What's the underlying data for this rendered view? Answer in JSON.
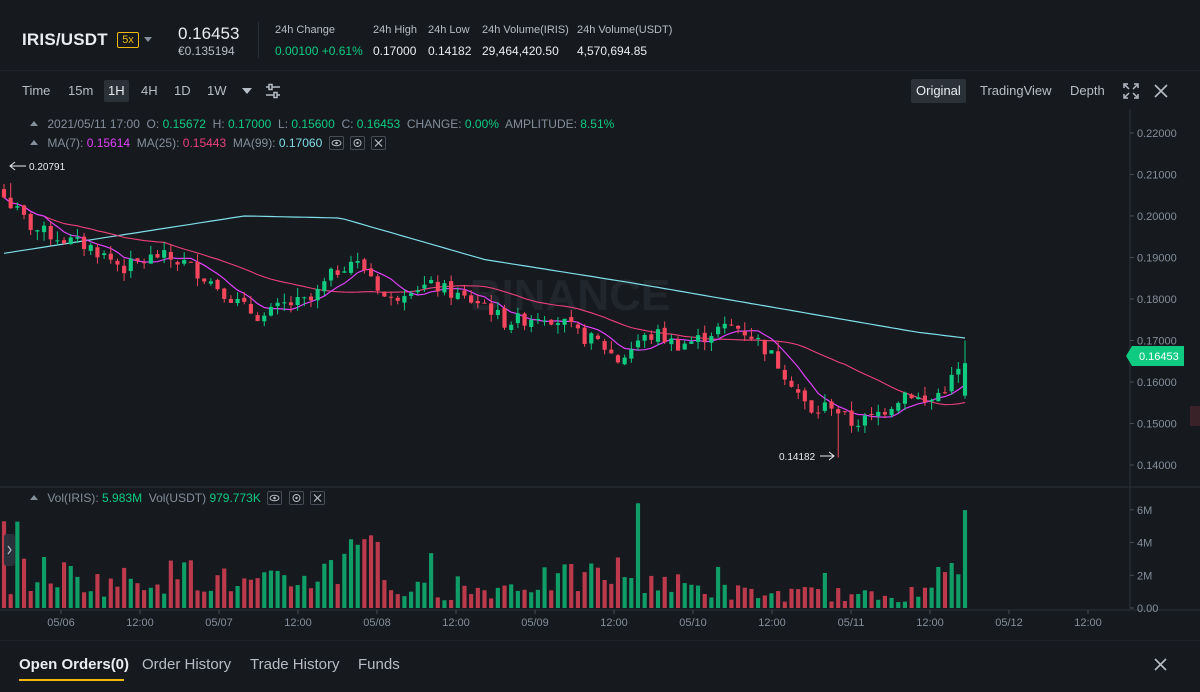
{
  "header": {
    "pair": "IRIS/USDT",
    "leverage": "5x",
    "last_price": "0.16453",
    "last_price_eur": "€0.135194",
    "stats": [
      {
        "label": "24h Change",
        "value": "0.00100 +0.61%",
        "green": true
      },
      {
        "label": "24h High",
        "value": "0.17000"
      },
      {
        "label": "24h Low",
        "value": "0.14182"
      },
      {
        "label": "24h Volume(IRIS)",
        "value": "29,464,420.50"
      },
      {
        "label": "24h Volume(USDT)",
        "value": "4,570,694.85"
      }
    ]
  },
  "toolbar": {
    "timeframes": [
      "Time",
      "15m",
      "1H",
      "4H",
      "1D",
      "1W"
    ],
    "active_timeframe": "1H",
    "views": [
      "Original",
      "TradingView",
      "Depth"
    ],
    "active_view": "Original",
    "icons": [
      "chevron-down-icon",
      "settings-sliders-icon",
      "fullscreen-icon",
      "close-icon"
    ]
  },
  "legend": {
    "date": "2021/05/11 17:00",
    "o_label": "O:",
    "o": "0.15672",
    "h_label": "H:",
    "h": "0.17000",
    "l_label": "L:",
    "l": "0.15600",
    "c_label": "C:",
    "c": "0.16453",
    "change_label": "CHANGE:",
    "change": "0.00%",
    "amp_label": "AMPLITUDE:",
    "amp": "8.51%",
    "ma7_label": "MA(7):",
    "ma7": "0.15614",
    "ma25_label": "MA(25):",
    "ma25": "0.15443",
    "ma99_label": "MA(99):",
    "ma99": "0.17060",
    "vol_iris_label": "Vol(IRIS):",
    "vol_iris": "5.983M",
    "vol_usdt_label": "Vol(USDT)",
    "vol_usdt": "979.773K"
  },
  "watermark": "BINANCE",
  "colors": {
    "up": "#0ecb81",
    "down": "#f6465d",
    "ma7": "#e040fb",
    "ma25": "#ec407a",
    "ma99": "#80deea",
    "accent": "#f0b90b"
  },
  "chart_data": {
    "type": "candlestick",
    "price_axis_ticks": [
      "0.22000",
      "0.21000",
      "0.20000",
      "0.19000",
      "0.18000",
      "0.17000",
      "0.16000",
      "0.15000",
      "0.14000"
    ],
    "price_ylim": [
      0.1359,
      0.2236
    ],
    "volume_axis_ticks": [
      "6M",
      "4M",
      "2M",
      "0.00"
    ],
    "volume_ylim": [
      0,
      6.6
    ],
    "time_labels": [
      "05/06",
      "12:00",
      "05/07",
      "12:00",
      "05/08",
      "12:00",
      "05/09",
      "12:00",
      "05/10",
      "12:00",
      "05/11",
      "12:00",
      "05/12",
      "12:00"
    ],
    "current_price_label": "0.16453",
    "high_marker": "0.20791",
    "low_marker": "0.14182",
    "hours": 145,
    "close_anchors": [
      [
        0,
        0.2045
      ],
      [
        6,
        0.197
      ],
      [
        12,
        0.1945
      ],
      [
        18,
        0.1925
      ],
      [
        25,
        0.1875
      ],
      [
        32,
        0.1905
      ],
      [
        38,
        0.1885
      ],
      [
        44,
        0.1835
      ],
      [
        50,
        0.1778
      ],
      [
        54,
        0.1755
      ],
      [
        58,
        0.1785
      ],
      [
        64,
        0.1795
      ],
      [
        68,
        0.1855
      ],
      [
        72,
        0.1895
      ],
      [
        76,
        0.1865
      ],
      [
        80,
        0.179
      ],
      [
        84,
        0.183
      ],
      [
        90,
        0.183
      ],
      [
        96,
        0.18
      ],
      [
        100,
        0.179
      ],
      [
        104,
        0.1745
      ],
      [
        108,
        0.175
      ],
      [
        112,
        0.1765
      ],
      [
        116,
        0.1745
      ],
      [
        120,
        0.171
      ],
      [
        124,
        0.1695
      ],
      [
        128,
        0.165
      ],
      [
        132,
        0.17
      ],
      [
        136,
        0.1715
      ],
      [
        140,
        0.169
      ],
      [
        144,
        0.17
      ],
      [
        148,
        0.1725
      ],
      [
        152,
        0.1735
      ],
      [
        156,
        0.171
      ],
      [
        160,
        0.166
      ],
      [
        164,
        0.16
      ],
      [
        168,
        0.152
      ],
      [
        172,
        0.155
      ],
      [
        176,
        0.15
      ],
      [
        180,
        0.151
      ],
      [
        184,
        0.154
      ],
      [
        188,
        0.158
      ],
      [
        192,
        0.1545
      ],
      [
        196,
        0.159
      ],
      [
        200,
        0.16453
      ]
    ],
    "anchor_x_scale": 200,
    "ma7_closes_note": "",
    "ma99_anchors": [
      [
        0,
        0.191
      ],
      [
        50,
        0.2
      ],
      [
        70,
        0.1995
      ],
      [
        100,
        0.1895
      ],
      [
        130,
        0.184
      ],
      [
        160,
        0.178
      ],
      [
        190,
        0.172
      ],
      [
        200,
        0.1706
      ]
    ],
    "volume_anchors_M": [
      [
        0,
        1.8
      ],
      [
        10,
        2.2
      ],
      [
        20,
        1.5
      ],
      [
        30,
        1.9
      ],
      [
        40,
        2.0
      ],
      [
        50,
        1.4
      ],
      [
        60,
        1.6
      ],
      [
        70,
        2.5
      ],
      [
        74,
        6.3
      ],
      [
        80,
        1.2
      ],
      [
        90,
        1.0
      ],
      [
        100,
        1.1
      ],
      [
        110,
        1.6
      ],
      [
        120,
        1.8
      ],
      [
        130,
        2.3
      ],
      [
        140,
        1.4
      ],
      [
        150,
        1.0
      ],
      [
        160,
        0.8
      ],
      [
        170,
        0.9
      ],
      [
        180,
        0.7
      ],
      [
        190,
        0.8
      ],
      [
        196,
        1.0
      ],
      [
        200,
        5.98
      ]
    ]
  },
  "bottom_tabs": {
    "tabs": [
      "Open Orders(0)",
      "Order History",
      "Trade History",
      "Funds"
    ],
    "active": "Open Orders(0)"
  }
}
